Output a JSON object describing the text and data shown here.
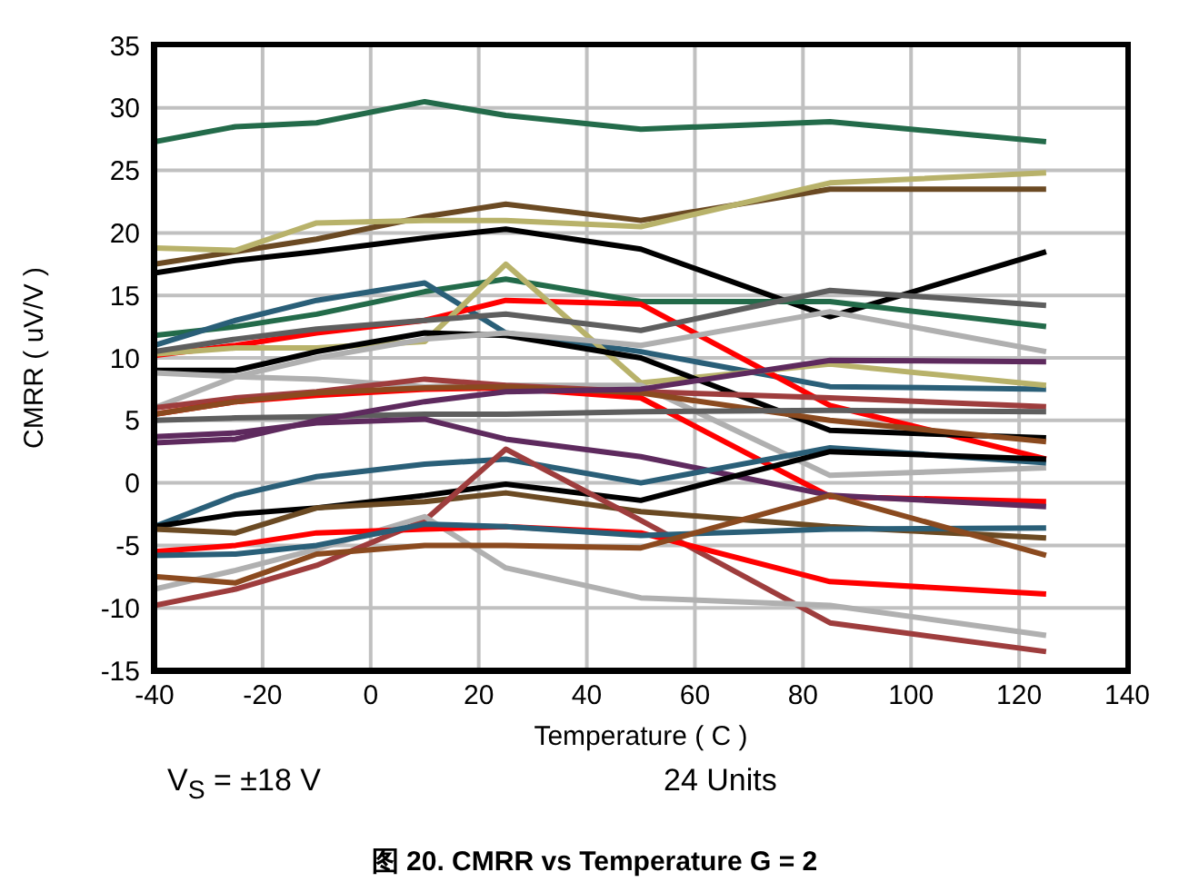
{
  "chart_data": {
    "type": "line",
    "title": "图 20. CMRR vs Temperature G = 2",
    "xlabel": "Temperature ( C )",
    "ylabel": "CMRR ( uV/V )",
    "annotations": [
      "V$_{S}$ = ±18 V",
      "24 Units"
    ],
    "x": [
      -40,
      -25,
      -10,
      10,
      25,
      50,
      85,
      125
    ],
    "xlim": [
      -40,
      140
    ],
    "xticks": [
      -40,
      -20,
      0,
      20,
      40,
      60,
      80,
      100,
      120,
      140
    ],
    "ylim": [
      -15,
      35
    ],
    "yticks": [
      -15,
      -10,
      -5,
      0,
      5,
      10,
      15,
      20,
      25,
      30,
      35
    ],
    "grid": true,
    "marker": "none",
    "line_style": "solid",
    "series": [
      {
        "color": "#236b4a",
        "values": [
          27.3,
          28.5,
          28.8,
          30.5,
          29.4,
          28.3,
          28.9,
          27.3
        ]
      },
      {
        "color": "#6b4a23",
        "values": [
          17.5,
          18.5,
          19.5,
          21.3,
          22.3,
          21,
          23.5,
          23.5
        ]
      },
      {
        "color": "#b8b26a",
        "values": [
          18.8,
          18.6,
          20.8,
          21,
          21,
          20.5,
          24,
          24.8
        ]
      },
      {
        "color": "#000000",
        "values": [
          16.8,
          17.8,
          18.5,
          19.6,
          20.3,
          18.7,
          13.3,
          18.5
        ]
      },
      {
        "color": "#236b4a",
        "values": [
          11.8,
          12.5,
          13.5,
          15.3,
          16.3,
          14.5,
          14.5,
          12.5
        ]
      },
      {
        "color": "#2a5f78",
        "values": [
          11,
          13,
          14.6,
          16,
          12,
          10.5,
          7.7,
          7.5
        ]
      },
      {
        "color": "#ff0000",
        "values": [
          10.2,
          11,
          12,
          13,
          14.6,
          14.3,
          6.2,
          1.9
        ]
      },
      {
        "color": "#b8b26a",
        "values": [
          10.3,
          10.8,
          10.8,
          11.3,
          17.5,
          8,
          9.5,
          7.8
        ]
      },
      {
        "color": "#5e5e5e",
        "values": [
          10.5,
          11.5,
          12.3,
          13,
          13.5,
          12.2,
          15.4,
          14.2
        ]
      },
      {
        "color": "#000000",
        "values": [
          9,
          9,
          10.5,
          12,
          11.8,
          10,
          4.2,
          3.6
        ]
      },
      {
        "color": "#b0b0b0",
        "values": [
          6,
          8.5,
          10,
          11.5,
          12,
          11,
          13.7,
          10.5
        ]
      },
      {
        "color": "#b0b0b0",
        "values": [
          8.8,
          8.5,
          8.3,
          7.7,
          7.8,
          7.8,
          0.6,
          1.2
        ]
      },
      {
        "color": "#9e3d3d",
        "values": [
          6,
          6.8,
          7.3,
          8.3,
          7.8,
          7.3,
          6.8,
          6.1
        ]
      },
      {
        "color": "#ff0000",
        "values": [
          5.5,
          6.5,
          7,
          7.5,
          7.6,
          6.8,
          -1.1,
          -1.5
        ]
      },
      {
        "color": "#8b4a1f",
        "values": [
          5.5,
          6.5,
          7.2,
          7.6,
          7.7,
          7.2,
          5,
          3.3
        ]
      },
      {
        "color": "#5e5e5e",
        "values": [
          5,
          5.2,
          5.3,
          5.5,
          5.5,
          5.7,
          5.8,
          5.7
        ]
      },
      {
        "color": "#5e2a5e",
        "values": [
          3.2,
          3.5,
          5,
          6.5,
          7.3,
          7.5,
          9.8,
          9.7
        ]
      },
      {
        "color": "#5e2a5e",
        "values": [
          3.7,
          4,
          4.8,
          5.1,
          3.5,
          2.1,
          -1,
          -1.9
        ]
      },
      {
        "color": "#2a5f78",
        "values": [
          -3.5,
          -1,
          0.5,
          1.5,
          1.9,
          0,
          2.8,
          1.6
        ]
      },
      {
        "color": "#000000",
        "values": [
          -3.5,
          -2.5,
          -2,
          -1,
          -0.1,
          -1.4,
          2.5,
          1.9
        ]
      },
      {
        "color": "#6b4a23",
        "values": [
          -3.7,
          -4,
          -2,
          -1.5,
          -0.8,
          -2.3,
          -3.5,
          -4.4
        ]
      },
      {
        "color": "#9e3d3d",
        "values": [
          -9.8,
          -8.5,
          -6.6,
          -3,
          2.7,
          -3,
          -11.2,
          -13.5
        ]
      },
      {
        "color": "#b0b0b0",
        "values": [
          -8.5,
          -7,
          -5.3,
          -2.7,
          -6.8,
          -9.2,
          -9.8,
          -12.2
        ]
      },
      {
        "color": "#ff0000",
        "values": [
          -5.5,
          -5,
          -4,
          -3.7,
          -3.5,
          -4,
          -7.9,
          -8.9
        ]
      },
      {
        "color": "#2a5f78",
        "values": [
          -5.8,
          -5.7,
          -5,
          -3.3,
          -3.5,
          -4.2,
          -3.7,
          -3.6
        ]
      },
      {
        "color": "#8b4a1f",
        "values": [
          -7.5,
          -8,
          -5.7,
          -5,
          -5,
          -5.2,
          -1,
          -5.8
        ]
      }
    ]
  }
}
